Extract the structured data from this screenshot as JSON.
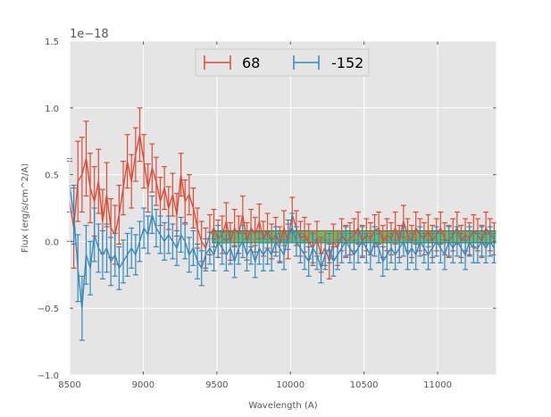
{
  "chart_data": {
    "type": "line",
    "title": "",
    "xlabel": "Wavelength (A)",
    "ylabel": "Flux (erg/s/cm^2/A)",
    "xlim": [
      8500,
      11400
    ],
    "ylim": [
      -1.0,
      1.5
    ],
    "y_scale_offset": "1e−18",
    "xticks": [
      8500,
      9000,
      9500,
      10000,
      10500,
      11000
    ],
    "yticks": [
      -1.0,
      -0.5,
      0.0,
      0.5,
      1.0,
      1.5
    ],
    "grid": true,
    "legend_position": "top-center",
    "background": "#e5e5e5",
    "band": {
      "x_start": 9470,
      "x_end": 11400,
      "y_low": -0.01,
      "y_high": 0.08,
      "color": "#2ca02c"
    },
    "series": [
      {
        "name": "68",
        "color": "#e24a33",
        "x": [
          8500,
          8528,
          8556,
          8584,
          8612,
          8640,
          8668,
          8696,
          8724,
          8752,
          8780,
          8808,
          8836,
          8864,
          8892,
          8920,
          8948,
          8976,
          9004,
          9032,
          9060,
          9088,
          9116,
          9144,
          9172,
          9200,
          9228,
          9256,
          9284,
          9312,
          9340,
          9368,
          9396,
          9424,
          9452,
          9480,
          9508,
          9536,
          9564,
          9592,
          9620,
          9648,
          9676,
          9704,
          9732,
          9760,
          9788,
          9816,
          9844,
          9872,
          9900,
          9928,
          9956,
          9984,
          10012,
          10040,
          10068,
          10096,
          10124,
          10152,
          10180,
          10208,
          10236,
          10264,
          10292,
          10320,
          10348,
          10376,
          10404,
          10432,
          10460,
          10488,
          10516,
          10544,
          10572,
          10600,
          10628,
          10656,
          10684,
          10712,
          10740,
          10768,
          10796,
          10824,
          10852,
          10880,
          10908,
          10936,
          10964,
          10992,
          11020,
          11048,
          11076,
          11104,
          11132,
          11160,
          11188,
          11216,
          11244,
          11272,
          11300,
          11328,
          11356,
          11384
        ],
        "y": [
          0.3,
          0.1,
          0.45,
          0.5,
          0.62,
          0.4,
          0.3,
          0.45,
          0.15,
          0.35,
          0.1,
          0.05,
          0.2,
          0.4,
          0.6,
          0.45,
          0.65,
          0.8,
          0.6,
          0.4,
          0.55,
          0.45,
          0.3,
          0.4,
          0.25,
          0.35,
          0.2,
          0.5,
          0.3,
          0.35,
          0.25,
          0.1,
          0.0,
          -0.05,
          0.05,
          0.1,
          0.02,
          0.05,
          0.15,
          0.0,
          0.1,
          0.05,
          0.2,
          0.0,
          0.1,
          0.05,
          0.15,
          0.02,
          0.08,
          0.0,
          0.05,
          -0.02,
          0.1,
          0.0,
          0.2,
          0.1,
          0.02,
          0.05,
          0.0,
          -0.05,
          0.02,
          -0.1,
          -0.05,
          -0.15,
          0.0,
          -0.05,
          0.05,
          0.0,
          0.02,
          0.05,
          0.1,
          0.0,
          0.05,
          0.02,
          0.08,
          0.1,
          0.0,
          0.05,
          0.02,
          0.1,
          0.0,
          0.15,
          0.05,
          0.0,
          0.1,
          0.05,
          0.02,
          0.08,
          0.0,
          0.05,
          0.1,
          0.02,
          0.0,
          0.05,
          0.1,
          0.0,
          0.05,
          0.02,
          0.08,
          0.05,
          0.0,
          0.1,
          0.05,
          0.02
        ],
        "err": [
          0.3,
          0.3,
          0.3,
          0.28,
          0.28,
          0.26,
          0.26,
          0.24,
          0.24,
          0.24,
          0.22,
          0.22,
          0.22,
          0.2,
          0.2,
          0.2,
          0.2,
          0.2,
          0.2,
          0.18,
          0.18,
          0.18,
          0.18,
          0.16,
          0.16,
          0.16,
          0.16,
          0.16,
          0.16,
          0.15,
          0.15,
          0.15,
          0.15,
          0.15,
          0.15,
          0.14,
          0.14,
          0.14,
          0.14,
          0.14,
          0.14,
          0.14,
          0.14,
          0.14,
          0.14,
          0.13,
          0.13,
          0.13,
          0.13,
          0.13,
          0.13,
          0.13,
          0.13,
          0.13,
          0.13,
          0.13,
          0.13,
          0.13,
          0.13,
          0.13,
          0.13,
          0.13,
          0.13,
          0.13,
          0.13,
          0.13,
          0.12,
          0.12,
          0.12,
          0.12,
          0.12,
          0.12,
          0.12,
          0.12,
          0.12,
          0.12,
          0.12,
          0.12,
          0.12,
          0.12,
          0.12,
          0.12,
          0.12,
          0.12,
          0.12,
          0.12,
          0.12,
          0.12,
          0.12,
          0.12,
          0.12,
          0.12,
          0.12,
          0.12,
          0.12,
          0.12,
          0.12,
          0.12,
          0.12,
          0.12,
          0.12,
          0.12,
          0.12,
          0.12
        ]
      },
      {
        "name": "-152",
        "color": "#348abd",
        "x": [
          8500,
          8528,
          8556,
          8584,
          8612,
          8640,
          8668,
          8696,
          8724,
          8752,
          8780,
          8808,
          8836,
          8864,
          8892,
          8920,
          8948,
          8976,
          9004,
          9032,
          9060,
          9088,
          9116,
          9144,
          9172,
          9200,
          9228,
          9256,
          9284,
          9312,
          9340,
          9368,
          9396,
          9424,
          9452,
          9480,
          9508,
          9536,
          9564,
          9592,
          9620,
          9648,
          9676,
          9704,
          9732,
          9760,
          9788,
          9816,
          9844,
          9872,
          9900,
          9928,
          9956,
          9984,
          10012,
          10040,
          10068,
          10096,
          10124,
          10152,
          10180,
          10208,
          10236,
          10264,
          10292,
          10320,
          10348,
          10376,
          10404,
          10432,
          10460,
          10488,
          10516,
          10544,
          10572,
          10600,
          10628,
          10656,
          10684,
          10712,
          10740,
          10768,
          10796,
          10824,
          10852,
          10880,
          10908,
          10936,
          10964,
          10992,
          11020,
          11048,
          11076,
          11104,
          11132,
          11160,
          11188,
          11216,
          11244,
          11272,
          11300,
          11328,
          11356,
          11384
        ],
        "y": [
          0.42,
          0.2,
          -0.2,
          -0.5,
          -0.1,
          -0.2,
          0.05,
          -0.05,
          -0.1,
          -0.05,
          -0.15,
          -0.1,
          -0.2,
          -0.15,
          -0.1,
          -0.05,
          -0.1,
          0.0,
          0.1,
          0.05,
          0.2,
          0.1,
          0.05,
          0.0,
          0.05,
          0.0,
          -0.05,
          0.05,
          0.0,
          -0.1,
          -0.05,
          -0.15,
          -0.2,
          -0.1,
          -0.05,
          -0.1,
          0.0,
          -0.05,
          -0.1,
          -0.05,
          -0.15,
          -0.05,
          0.0,
          -0.1,
          -0.05,
          -0.15,
          -0.05,
          -0.1,
          -0.05,
          -0.1,
          0.0,
          -0.05,
          -0.1,
          0.05,
          0.1,
          0.0,
          -0.05,
          -0.1,
          -0.15,
          -0.05,
          -0.1,
          -0.2,
          -0.1,
          -0.05,
          -0.15,
          -0.1,
          -0.05,
          0.0,
          -0.05,
          -0.1,
          -0.05,
          0.0,
          -0.05,
          -0.1,
          0.0,
          -0.05,
          -0.15,
          -0.1,
          -0.05,
          -0.1,
          -0.05,
          0.0,
          -0.1,
          -0.05,
          -0.1,
          0.0,
          -0.05,
          -0.1,
          -0.05,
          0.0,
          -0.05,
          -0.1,
          0.0,
          -0.05,
          0.0,
          -0.05,
          -0.1,
          0.0,
          -0.05,
          -0.05,
          0.0,
          -0.05,
          0.0,
          -0.05
        ],
        "err": [
          0.2,
          0.22,
          0.25,
          0.24,
          0.22,
          0.2,
          0.2,
          0.18,
          0.18,
          0.18,
          0.18,
          0.16,
          0.16,
          0.16,
          0.16,
          0.15,
          0.15,
          0.15,
          0.15,
          0.14,
          0.14,
          0.14,
          0.14,
          0.14,
          0.14,
          0.13,
          0.13,
          0.13,
          0.13,
          0.13,
          0.13,
          0.13,
          0.13,
          0.12,
          0.12,
          0.12,
          0.12,
          0.12,
          0.12,
          0.12,
          0.12,
          0.12,
          0.12,
          0.12,
          0.12,
          0.12,
          0.12,
          0.12,
          0.12,
          0.12,
          0.11,
          0.11,
          0.11,
          0.11,
          0.11,
          0.11,
          0.11,
          0.11,
          0.11,
          0.11,
          0.11,
          0.11,
          0.11,
          0.11,
          0.11,
          0.11,
          0.11,
          0.11,
          0.11,
          0.11,
          0.11,
          0.11,
          0.11,
          0.11,
          0.11,
          0.11,
          0.11,
          0.11,
          0.11,
          0.11,
          0.11,
          0.11,
          0.11,
          0.11,
          0.11,
          0.11,
          0.11,
          0.11,
          0.11,
          0.11,
          0.11,
          0.11,
          0.11,
          0.11,
          0.11,
          0.11,
          0.11,
          0.11,
          0.11,
          0.11,
          0.11,
          0.11,
          0.11,
          0.11
        ]
      }
    ]
  }
}
